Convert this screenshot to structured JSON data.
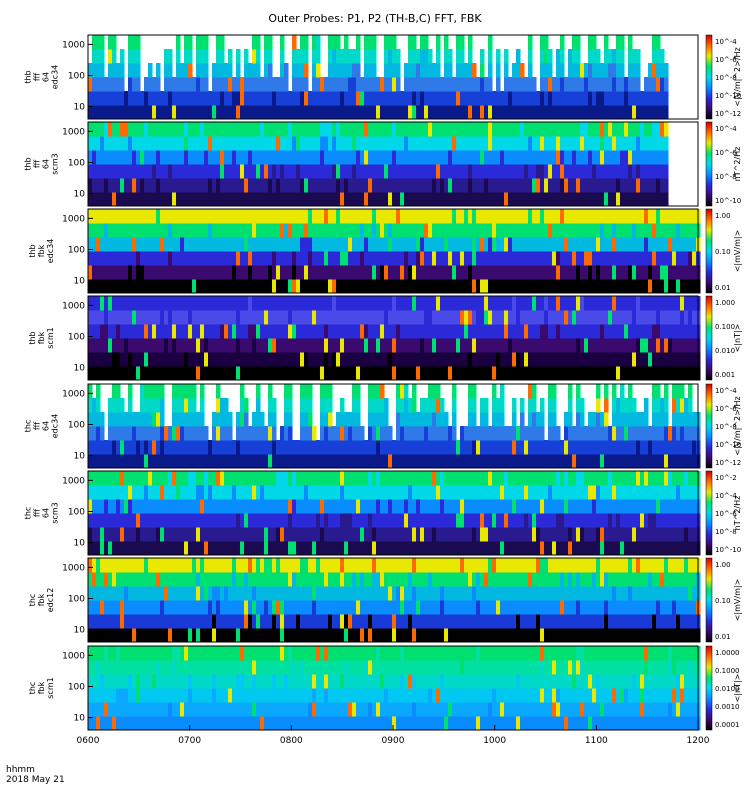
{
  "chart_data": {
    "type": "heatmap",
    "title": "Outer Probes: P1, P2 (TH-B,C) FFT, FBK",
    "x": {
      "ticks": [
        "0600",
        "0700",
        "0800",
        "0900",
        "1000",
        "1100",
        "1200"
      ],
      "range": [
        "06:00",
        "12:00"
      ],
      "label_line1": "hhmm",
      "label_line2": "2018 May 21"
    },
    "panels": [
      {
        "ylabel": [
          "thb",
          "fff",
          "64",
          "edc34"
        ],
        "yticks": [
          "10",
          "100",
          "1000"
        ],
        "yscale": "log",
        "colorbar_unit": "<|V/m|^2>/Hz",
        "colorbar_ticks": [
          "10^-12",
          "10^-10",
          "10^-8",
          "10^-6",
          "10^-4"
        ],
        "data_end": "11:40"
      },
      {
        "ylabel": [
          "thb",
          "fff",
          "64",
          "scm3"
        ],
        "yticks": [
          "10",
          "100",
          "1000"
        ],
        "yscale": "log",
        "colorbar_unit": "nT^2/Hz",
        "colorbar_ticks": [
          "10^-10",
          "10^-8",
          "10^-6",
          "10^-4"
        ],
        "data_end": "11:40"
      },
      {
        "ylabel": [
          "thb",
          "fbk",
          "edc34"
        ],
        "yticks": [
          "10",
          "100",
          "1000"
        ],
        "yscale": "log",
        "colorbar_unit": "<|mV/m|>",
        "colorbar_ticks": [
          "0.01",
          "0.10",
          "1.00"
        ]
      },
      {
        "ylabel": [
          "thb",
          "fbk",
          "scm1"
        ],
        "yticks": [
          "10",
          "100",
          "1000"
        ],
        "yscale": "log",
        "colorbar_unit": "<|nT|>",
        "colorbar_ticks": [
          "0.001",
          "0.010",
          "0.100",
          "1.000"
        ]
      },
      {
        "ylabel": [
          "thc",
          "fff",
          "64",
          "edc34"
        ],
        "yticks": [
          "10",
          "100",
          "1000"
        ],
        "yscale": "log",
        "colorbar_unit": "<|V/m|^2>/Hz",
        "colorbar_ticks": [
          "10^-12",
          "10^-10",
          "10^-8",
          "10^-6",
          "10^-4"
        ]
      },
      {
        "ylabel": [
          "thc",
          "fff",
          "64",
          "scm3"
        ],
        "yticks": [
          "10",
          "100",
          "1000"
        ],
        "yscale": "log",
        "colorbar_unit": "nT^2/Hz",
        "colorbar_ticks": [
          "10^-10",
          "10^-8",
          "10^-6",
          "10^-4",
          "10^-2"
        ]
      },
      {
        "ylabel": [
          "thc",
          "fbk",
          "edc12"
        ],
        "yticks": [
          "10",
          "100",
          "1000"
        ],
        "yscale": "log",
        "colorbar_unit": "<|mV/m|>",
        "colorbar_ticks": [
          "0.01",
          "0.10",
          "1.00"
        ]
      },
      {
        "ylabel": [
          "thc",
          "fbk",
          "scm1"
        ],
        "yticks": [
          "10",
          "100",
          "1000"
        ],
        "yscale": "log",
        "colorbar_unit": "<|nT|>",
        "colorbar_ticks": [
          "0.0001",
          "0.0010",
          "0.0100",
          "0.1000",
          "1.0000"
        ]
      }
    ],
    "colors": {
      "ramp": [
        "#000000",
        "#3a0a6e",
        "#2a2ad8",
        "#0a8cff",
        "#00d8e8",
        "#00e070",
        "#e8e800",
        "#ff6a00",
        "#cc0000"
      ]
    }
  }
}
